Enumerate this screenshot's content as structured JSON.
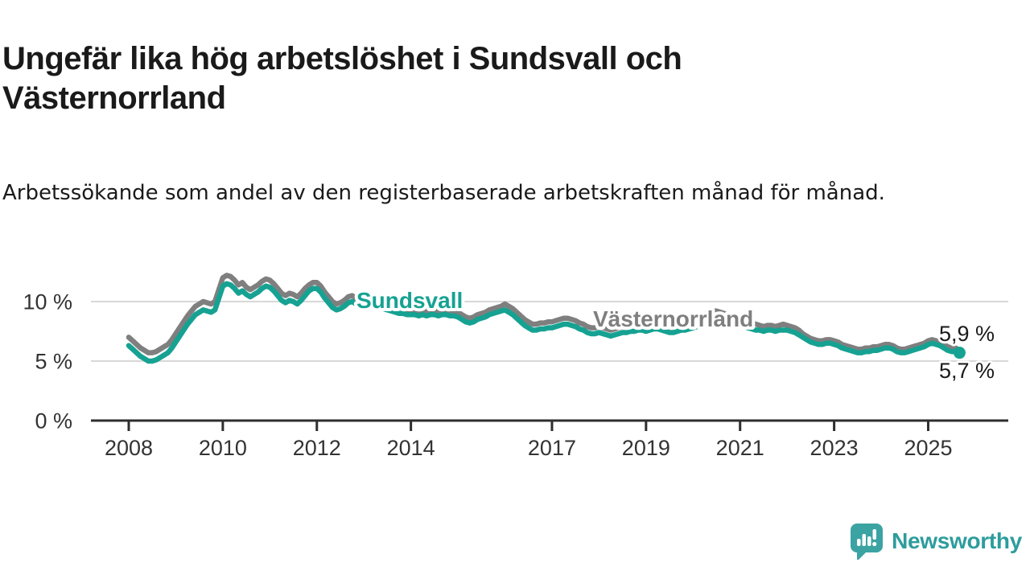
{
  "header": {
    "title": "Ungefär lika hög arbetslöshet i Sundsvall och Västernorrland",
    "subtitle": "Arbetssökande som andel av den registerbaserade arbetskraften månad för månad."
  },
  "footer": {
    "brand": "Newsworthy",
    "brand_color": "#2d9c9c",
    "logo_color": "#3ca3a3"
  },
  "colors": {
    "axis": "#2e2e2e",
    "gridline": "#d8d8d8",
    "tick_text": "#333333",
    "end_label_text": "#1a1a1a",
    "sundsvall": "#16a292",
    "vasternorrland": "#7f7f7f"
  },
  "chart_data": {
    "type": "line",
    "title": "Ungefär lika hög arbetslöshet i Sundsvall och Västernorrland",
    "subtitle": "Arbetssökande som andel av den registerbaserade arbetskraften månad för månad.",
    "unit": "%",
    "frequency": "monthly",
    "x_start": "2008-01",
    "x_end": "2025-09",
    "ylim": [
      0,
      12.6
    ],
    "grid": "horizontal-only",
    "legend_position": "inline-labels",
    "y_ticks": [
      {
        "value": 0,
        "label": "0 %"
      },
      {
        "value": 5,
        "label": "5 %"
      },
      {
        "value": 10,
        "label": "10 %"
      }
    ],
    "x_ticks": [
      {
        "year": 2008,
        "label": "2008"
      },
      {
        "year": 2010,
        "label": "2010"
      },
      {
        "year": 2012,
        "label": "2012"
      },
      {
        "year": 2014,
        "label": "2014"
      },
      {
        "year": 2017,
        "label": "2017"
      },
      {
        "year": 2019,
        "label": "2019"
      },
      {
        "year": 2021,
        "label": "2021"
      },
      {
        "year": 2023,
        "label": "2023"
      },
      {
        "year": 2025,
        "label": "2025"
      }
    ],
    "series": [
      {
        "name": "Sundsvall",
        "color": "#16a292",
        "end_label": "5,7 %",
        "end_value": 5.7,
        "values": [
          6.3,
          6.0,
          5.7,
          5.4,
          5.2,
          5.0,
          5.0,
          5.1,
          5.3,
          5.5,
          5.7,
          6.1,
          6.6,
          7.1,
          7.6,
          8.1,
          8.5,
          8.9,
          9.1,
          9.3,
          9.2,
          9.1,
          9.3,
          10.3,
          11.3,
          11.5,
          11.4,
          11.1,
          10.7,
          10.9,
          10.6,
          10.4,
          10.6,
          10.8,
          11.1,
          11.3,
          11.2,
          10.9,
          10.5,
          10.1,
          9.9,
          10.1,
          10.0,
          9.8,
          10.1,
          10.5,
          10.9,
          11.1,
          11.1,
          10.8,
          10.3,
          9.9,
          9.5,
          9.3,
          9.4,
          9.6,
          9.9,
          10.0,
          9.8,
          9.6,
          9.8,
          9.9,
          9.9,
          9.8,
          9.6,
          9.4,
          9.3,
          9.2,
          9.1,
          9.0,
          9.0,
          8.9,
          8.9,
          8.9,
          8.8,
          8.9,
          8.8,
          8.9,
          8.9,
          8.8,
          8.9,
          8.9,
          8.8,
          8.8,
          8.7,
          8.5,
          8.3,
          8.2,
          8.3,
          8.5,
          8.6,
          8.7,
          8.9,
          9.0,
          9.1,
          9.2,
          9.3,
          9.1,
          8.9,
          8.6,
          8.3,
          8.0,
          7.8,
          7.6,
          7.6,
          7.7,
          7.7,
          7.8,
          7.8,
          7.9,
          8.0,
          8.1,
          8.1,
          8.0,
          7.9,
          7.7,
          7.6,
          7.4,
          7.3,
          7.3,
          7.4,
          7.3,
          7.2,
          7.1,
          7.2,
          7.3,
          7.4,
          7.4,
          7.5,
          7.5,
          7.6,
          7.6,
          7.5,
          7.6,
          7.7,
          7.7,
          7.6,
          7.5,
          7.4,
          7.4,
          7.5,
          7.6,
          7.6,
          7.7,
          7.8,
          7.9,
          8.1,
          8.4,
          8.6,
          8.7,
          8.7,
          8.6,
          8.5,
          8.3,
          8.2,
          8.1,
          8.0,
          7.9,
          7.8,
          7.7,
          7.6,
          7.6,
          7.5,
          7.6,
          7.6,
          7.5,
          7.6,
          7.6,
          7.6,
          7.5,
          7.4,
          7.2,
          7.0,
          6.8,
          6.6,
          6.5,
          6.4,
          6.4,
          6.5,
          6.5,
          6.4,
          6.3,
          6.1,
          6.0,
          5.9,
          5.8,
          5.7,
          5.7,
          5.8,
          5.8,
          5.9,
          5.9,
          6.0,
          6.1,
          6.1,
          6.0,
          5.8,
          5.7,
          5.7,
          5.8,
          5.9,
          6.0,
          6.1,
          6.2,
          6.4,
          6.5,
          6.4,
          6.3,
          6.1,
          5.9,
          5.8,
          5.8,
          5.7
        ]
      },
      {
        "name": "Västernorrland",
        "color": "#7f7f7f",
        "end_label": "5,9 %",
        "end_value": 5.9,
        "values": [
          7.0,
          6.7,
          6.4,
          6.1,
          5.9,
          5.7,
          5.7,
          5.8,
          6.0,
          6.2,
          6.4,
          6.8,
          7.3,
          7.8,
          8.3,
          8.8,
          9.2,
          9.6,
          9.8,
          10.0,
          9.9,
          9.8,
          10.0,
          11.0,
          12.0,
          12.2,
          12.1,
          11.8,
          11.4,
          11.6,
          11.2,
          11.0,
          11.2,
          11.4,
          11.7,
          11.9,
          11.8,
          11.5,
          11.1,
          10.7,
          10.5,
          10.7,
          10.6,
          10.4,
          10.7,
          11.1,
          11.4,
          11.6,
          11.6,
          11.3,
          10.8,
          10.4,
          10.0,
          9.8,
          9.9,
          10.1,
          10.4,
          10.5,
          10.3,
          10.1,
          10.3,
          10.4,
          10.4,
          10.3,
          10.1,
          9.9,
          9.8,
          9.7,
          9.6,
          9.5,
          9.4,
          9.3,
          9.3,
          9.3,
          9.2,
          9.3,
          9.2,
          9.3,
          9.3,
          9.2,
          9.3,
          9.3,
          9.2,
          9.2,
          9.1,
          8.9,
          8.7,
          8.6,
          8.7,
          8.9,
          9.0,
          9.1,
          9.3,
          9.4,
          9.5,
          9.6,
          9.8,
          9.6,
          9.4,
          9.1,
          8.8,
          8.5,
          8.3,
          8.1,
          8.1,
          8.2,
          8.2,
          8.3,
          8.3,
          8.4,
          8.5,
          8.6,
          8.6,
          8.5,
          8.4,
          8.2,
          8.1,
          7.9,
          7.8,
          7.8,
          7.9,
          7.8,
          7.7,
          7.6,
          7.7,
          7.8,
          7.9,
          7.9,
          8.0,
          8.0,
          8.1,
          8.1,
          8.0,
          8.1,
          8.2,
          8.2,
          8.1,
          8.0,
          7.9,
          7.9,
          8.0,
          8.1,
          8.1,
          8.2,
          8.3,
          8.4,
          8.6,
          8.9,
          9.1,
          9.2,
          9.2,
          9.1,
          9.0,
          8.8,
          8.7,
          8.6,
          8.5,
          8.4,
          8.3,
          8.2,
          8.1,
          8.0,
          7.9,
          8.0,
          8.0,
          7.9,
          8.0,
          8.1,
          8.0,
          7.9,
          7.8,
          7.6,
          7.3,
          7.1,
          6.9,
          6.8,
          6.7,
          6.7,
          6.8,
          6.8,
          6.7,
          6.6,
          6.4,
          6.3,
          6.2,
          6.1,
          6.0,
          6.0,
          6.1,
          6.1,
          6.2,
          6.2,
          6.3,
          6.4,
          6.4,
          6.3,
          6.1,
          6.0,
          6.0,
          6.1,
          6.2,
          6.3,
          6.4,
          6.5,
          6.7,
          6.8,
          6.7,
          6.6,
          6.4,
          6.2,
          6.1,
          6.1,
          5.9
        ]
      }
    ]
  }
}
